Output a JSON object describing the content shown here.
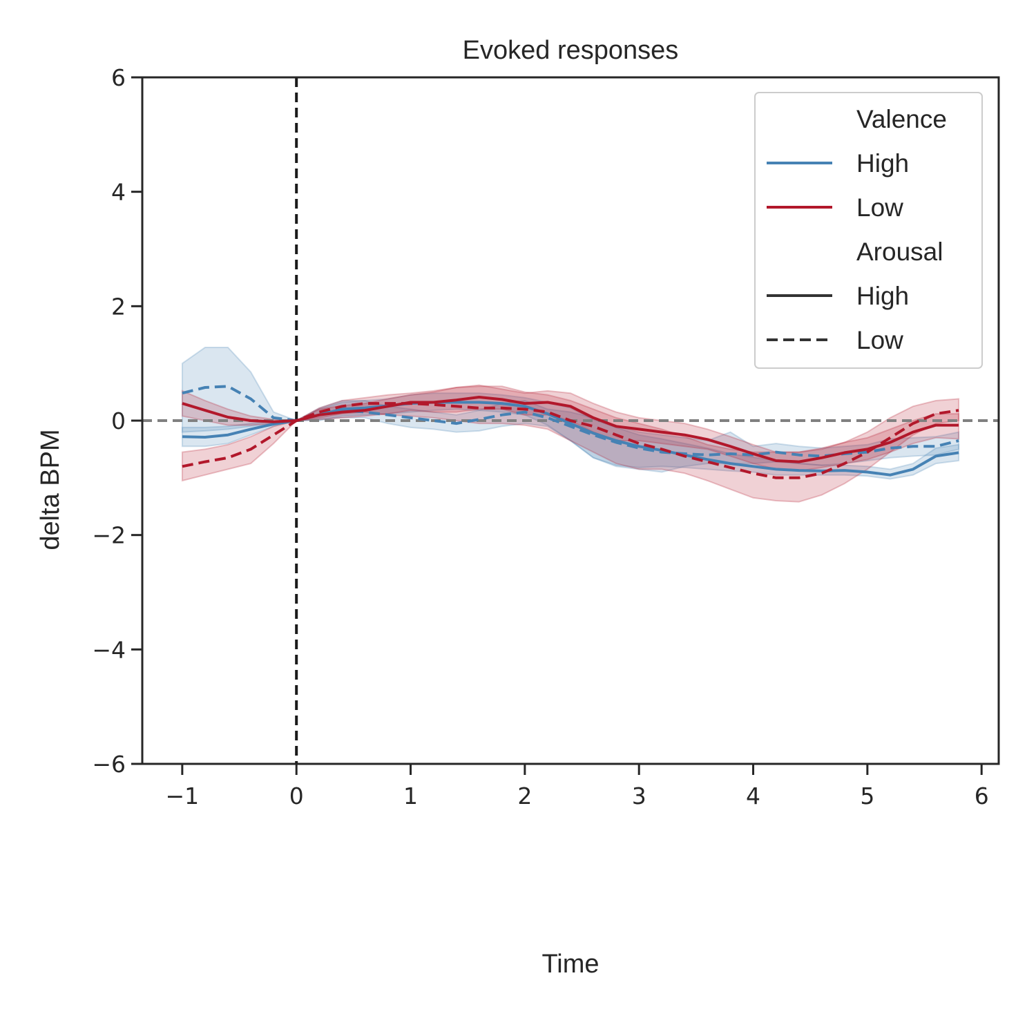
{
  "chart_data": {
    "type": "line",
    "title": "Evoked responses",
    "xlabel": "Time",
    "ylabel": "delta BPM",
    "xlim": [
      -1.35,
      6.15
    ],
    "ylim": [
      -6,
      6
    ],
    "xticks": [
      -1,
      0,
      1,
      2,
      3,
      4,
      5,
      6
    ],
    "yticks": [
      -6,
      -4,
      -2,
      0,
      2,
      4,
      6
    ],
    "xtick_labels": [
      "−1",
      "0",
      "1",
      "2",
      "3",
      "4",
      "5",
      "6"
    ],
    "ytick_labels": [
      "−6",
      "−4",
      "−2",
      "0",
      "2",
      "4",
      "6"
    ],
    "grid": false,
    "legend_position": "top-right",
    "reference_lines": [
      {
        "orientation": "vertical",
        "value": 0,
        "style": "dashed",
        "color": "#1a1a1a"
      },
      {
        "orientation": "horizontal",
        "value": 0,
        "style": "dashed",
        "color": "#808080"
      }
    ],
    "x": [
      -1.0,
      -0.8,
      -0.6,
      -0.4,
      -0.2,
      0.0,
      0.2,
      0.4,
      0.6,
      0.8,
      1.0,
      1.2,
      1.4,
      1.6,
      1.8,
      2.0,
      2.2,
      2.4,
      2.6,
      2.8,
      3.0,
      3.2,
      3.4,
      3.6,
      3.8,
      4.0,
      4.2,
      4.4,
      4.6,
      4.8,
      5.0,
      5.2,
      5.4,
      5.6,
      5.8
    ],
    "series": [
      {
        "valence": "High",
        "arousal": "High",
        "color": "#4682b4",
        "dash": "solid",
        "values": [
          -0.28,
          -0.29,
          -0.25,
          -0.15,
          -0.06,
          0.0,
          0.1,
          0.2,
          0.22,
          0.26,
          0.3,
          0.32,
          0.32,
          0.32,
          0.3,
          0.25,
          0.12,
          -0.05,
          -0.22,
          -0.35,
          -0.45,
          -0.52,
          -0.6,
          -0.68,
          -0.75,
          -0.8,
          -0.85,
          -0.87,
          -0.88,
          -0.87,
          -0.9,
          -0.95,
          -0.85,
          -0.62,
          -0.56
        ],
        "ci_low": [
          -0.45,
          -0.45,
          -0.4,
          -0.25,
          -0.1,
          0.0,
          0.0,
          0.08,
          0.1,
          0.12,
          0.15,
          0.18,
          0.2,
          0.18,
          0.15,
          0.1,
          -0.08,
          -0.35,
          -0.65,
          -0.78,
          -0.82,
          -0.8,
          -0.82,
          -0.85,
          -0.88,
          -0.9,
          -0.95,
          -0.95,
          -0.95,
          -0.95,
          -0.97,
          -1.02,
          -0.95,
          -0.75,
          -0.7
        ],
        "ci_high": [
          -0.12,
          -0.12,
          -0.1,
          -0.05,
          -0.02,
          0.0,
          0.2,
          0.32,
          0.35,
          0.38,
          0.45,
          0.48,
          0.48,
          0.48,
          0.45,
          0.4,
          0.32,
          0.22,
          0.02,
          -0.12,
          -0.25,
          -0.32,
          -0.4,
          -0.48,
          -0.58,
          -0.64,
          -0.7,
          -0.75,
          -0.78,
          -0.78,
          -0.8,
          -0.85,
          -0.75,
          -0.48,
          -0.42
        ]
      },
      {
        "valence": "High",
        "arousal": "Low",
        "color": "#4682b4",
        "dash": "dashed",
        "values": [
          0.48,
          0.58,
          0.6,
          0.38,
          0.05,
          0.0,
          0.12,
          0.18,
          0.15,
          0.1,
          0.05,
          0.0,
          -0.05,
          0.02,
          0.1,
          0.15,
          0.05,
          -0.1,
          -0.25,
          -0.38,
          -0.48,
          -0.55,
          -0.58,
          -0.6,
          -0.58,
          -0.6,
          -0.55,
          -0.6,
          -0.62,
          -0.58,
          -0.55,
          -0.48,
          -0.45,
          -0.45,
          -0.35
        ],
        "ci_low": [
          -0.2,
          -0.18,
          -0.15,
          -0.1,
          -0.05,
          0.0,
          0.02,
          0.05,
          0.05,
          -0.05,
          -0.12,
          -0.15,
          -0.2,
          -0.18,
          -0.1,
          -0.05,
          -0.1,
          -0.35,
          -0.65,
          -0.8,
          -0.85,
          -0.9,
          -0.8,
          -0.75,
          -0.75,
          -0.75,
          -0.72,
          -0.75,
          -0.78,
          -0.75,
          -0.7,
          -0.65,
          -0.62,
          -0.6,
          -0.5
        ],
        "ci_high": [
          1.0,
          1.28,
          1.28,
          0.85,
          0.15,
          0.0,
          0.22,
          0.35,
          0.35,
          0.25,
          0.2,
          0.15,
          0.1,
          0.18,
          0.3,
          0.35,
          0.2,
          0.15,
          0.05,
          -0.1,
          -0.2,
          -0.25,
          -0.3,
          -0.35,
          -0.2,
          -0.45,
          -0.4,
          -0.45,
          -0.48,
          -0.45,
          -0.42,
          -0.32,
          -0.3,
          -0.28,
          -0.2
        ]
      },
      {
        "valence": "Low",
        "arousal": "High",
        "color": "#b2182b",
        "dash": "solid",
        "values": [
          0.3,
          0.18,
          0.06,
          0.0,
          -0.02,
          0.0,
          0.1,
          0.15,
          0.18,
          0.25,
          0.32,
          0.32,
          0.36,
          0.41,
          0.37,
          0.3,
          0.32,
          0.25,
          0.05,
          -0.1,
          -0.15,
          -0.2,
          -0.25,
          -0.33,
          -0.45,
          -0.58,
          -0.7,
          -0.72,
          -0.65,
          -0.56,
          -0.5,
          -0.38,
          -0.2,
          -0.08,
          -0.08
        ],
        "ci_low": [
          0.08,
          0.0,
          -0.08,
          -0.08,
          -0.05,
          0.0,
          0.02,
          0.05,
          0.08,
          0.12,
          0.18,
          0.15,
          0.15,
          0.2,
          0.2,
          0.1,
          0.1,
          0.0,
          -0.2,
          -0.35,
          -0.35,
          -0.4,
          -0.45,
          -0.5,
          -0.62,
          -0.75,
          -0.85,
          -0.88,
          -0.82,
          -0.75,
          -0.68,
          -0.55,
          -0.4,
          -0.3,
          -0.32
        ],
        "ci_high": [
          0.52,
          0.35,
          0.2,
          0.08,
          0.02,
          0.0,
          0.2,
          0.26,
          0.3,
          0.38,
          0.45,
          0.5,
          0.58,
          0.62,
          0.55,
          0.48,
          0.52,
          0.48,
          0.3,
          0.15,
          0.05,
          0.0,
          -0.05,
          -0.15,
          -0.28,
          -0.42,
          -0.55,
          -0.55,
          -0.48,
          -0.38,
          -0.3,
          -0.15,
          0.0,
          0.12,
          0.12
        ]
      },
      {
        "valence": "Low",
        "arousal": "Low",
        "color": "#b2182b",
        "dash": "dashed",
        "values": [
          -0.8,
          -0.72,
          -0.65,
          -0.5,
          -0.25,
          0.0,
          0.15,
          0.25,
          0.3,
          0.3,
          0.3,
          0.28,
          0.25,
          0.22,
          0.22,
          0.2,
          0.15,
          0.0,
          -0.1,
          -0.25,
          -0.4,
          -0.5,
          -0.62,
          -0.72,
          -0.82,
          -0.92,
          -1.0,
          -1.0,
          -0.92,
          -0.75,
          -0.55,
          -0.3,
          -0.05,
          0.12,
          0.18
        ],
        "ci_low": [
          -1.05,
          -0.95,
          -0.85,
          -0.75,
          -0.4,
          0.0,
          0.05,
          0.12,
          0.15,
          0.1,
          0.08,
          0.05,
          0.0,
          -0.05,
          -0.05,
          -0.08,
          -0.15,
          -0.35,
          -0.55,
          -0.75,
          -0.85,
          -0.85,
          -0.92,
          -1.05,
          -1.2,
          -1.35,
          -1.4,
          -1.42,
          -1.3,
          -1.1,
          -0.85,
          -0.55,
          -0.25,
          -0.05,
          0.0
        ],
        "ci_high": [
          -0.55,
          -0.5,
          -0.42,
          -0.28,
          -0.1,
          0.0,
          0.22,
          0.35,
          0.4,
          0.45,
          0.48,
          0.52,
          0.58,
          0.6,
          0.6,
          0.5,
          0.45,
          0.35,
          0.2,
          0.05,
          -0.05,
          -0.15,
          -0.28,
          -0.42,
          -0.5,
          -0.55,
          -0.55,
          -0.55,
          -0.5,
          -0.38,
          -0.2,
          0.05,
          0.25,
          0.35,
          0.38
        ]
      }
    ],
    "legend": {
      "sections": [
        {
          "title": "Valence",
          "entries": [
            {
              "label": "High",
              "color": "#4682b4",
              "dash": "solid"
            },
            {
              "label": "Low",
              "color": "#b2182b",
              "dash": "solid"
            }
          ]
        },
        {
          "title": "Arousal",
          "entries": [
            {
              "label": "High",
              "color": "#333333",
              "dash": "solid"
            },
            {
              "label": "Low",
              "color": "#333333",
              "dash": "dashed"
            }
          ]
        }
      ]
    }
  }
}
